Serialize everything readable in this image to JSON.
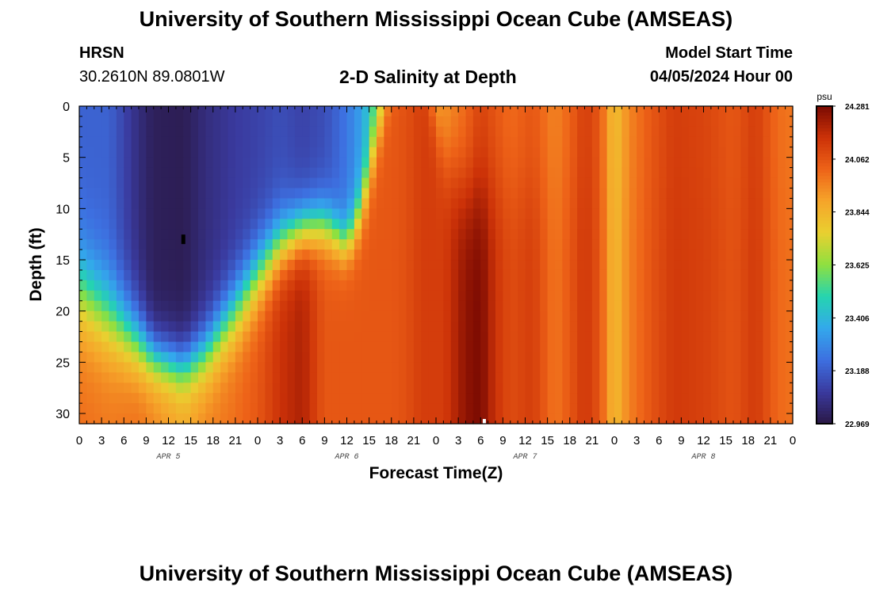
{
  "header": {
    "title": "University of Southern Mississippi Ocean Cube (AMSEAS)",
    "station": "HRSN",
    "coords": "30.2610N  89.0801W",
    "plot_title": "2-D Salinity at Depth",
    "model_label": "Model Start Time",
    "model_date": "04/05/2024 Hour 00"
  },
  "footer": {
    "title": "University of Southern Mississippi Ocean Cube (AMSEAS)"
  },
  "chart_data": {
    "type": "heatmap",
    "title": "2-D Salinity at Depth",
    "xlabel": "Forecast Time(Z)",
    "ylabel": "Depth (ft)",
    "x_ticks": [
      "0",
      "3",
      "6",
      "9",
      "12",
      "15",
      "18",
      "21",
      "0",
      "3",
      "6",
      "9",
      "12",
      "15",
      "18",
      "21",
      "0",
      "3",
      "6",
      "9",
      "12",
      "15",
      "18",
      "21",
      "0",
      "3",
      "6",
      "9",
      "12",
      "15",
      "18",
      "21",
      "0"
    ],
    "x_hours_range": [
      0,
      96
    ],
    "day_labels": [
      {
        "label": "APR 5",
        "hour": 12
      },
      {
        "label": "APR 6",
        "hour": 36
      },
      {
        "label": "APR 7",
        "hour": 60
      },
      {
        "label": "APR 8",
        "hour": 84
      }
    ],
    "y_ticks": [
      "0",
      "5",
      "10",
      "15",
      "20",
      "25",
      "30"
    ],
    "y_range": [
      0,
      31
    ],
    "colorbar": {
      "unit": "psu",
      "ticks": [
        "24.281",
        "24.062",
        "23.844",
        "23.625",
        "23.406",
        "23.188",
        "22.969"
      ],
      "min": 22.969,
      "max": 24.281,
      "colors": [
        "#2a1846",
        "#3a3a9e",
        "#3d6fe0",
        "#33a8ec",
        "#25d4b0",
        "#8ee040",
        "#e9d030",
        "#f6a52a",
        "#ee6318",
        "#cc3208",
        "#7a0a02"
      ]
    },
    "profiles": [
      {
        "hour": 0,
        "top": 23.2,
        "bottom": 24.0,
        "mid": 18,
        "width": 6
      },
      {
        "hour": 4,
        "top": 23.2,
        "bottom": 23.98,
        "mid": 20.5,
        "width": 5.5
      },
      {
        "hour": 8,
        "top": 23.05,
        "bottom": 24.0,
        "mid": 23,
        "width": 4.5
      },
      {
        "hour": 10,
        "top": 23.0,
        "bottom": 23.95,
        "mid": 24.5,
        "width": 3.5
      },
      {
        "hour": 14,
        "top": 22.99,
        "bottom": 23.88,
        "mid": 25.5,
        "width": 3.5
      },
      {
        "hour": 17,
        "top": 23.05,
        "bottom": 23.95,
        "mid": 24,
        "width": 4
      },
      {
        "hour": 21,
        "top": 23.1,
        "bottom": 24.0,
        "mid": 20,
        "width": 4.5
      },
      {
        "hour": 24,
        "top": 23.12,
        "bottom": 24.05,
        "mid": 16.5,
        "width": 4.5
      },
      {
        "hour": 27,
        "top": 23.15,
        "bottom": 24.15,
        "mid": 13.5,
        "width": 4
      },
      {
        "hour": 30,
        "top": 23.12,
        "bottom": 24.2,
        "mid": 12,
        "width": 3.5
      },
      {
        "hour": 33,
        "top": 23.15,
        "bottom": 24.05,
        "mid": 11.5,
        "width": 3.5
      },
      {
        "hour": 36,
        "top": 23.25,
        "bottom": 24.05,
        "mid": 13.5,
        "width": 3
      },
      {
        "hour": 38,
        "top": 23.35,
        "bottom": 24.05,
        "mid": 10,
        "width": 3.5
      },
      {
        "hour": 40,
        "top": 23.55,
        "bottom": 24.05,
        "mid": 3,
        "width": 4
      },
      {
        "hour": 42,
        "top": 23.72,
        "bottom": 24.05,
        "mid": -3,
        "width": 3
      },
      {
        "hour": 44,
        "top": 23.8,
        "bottom": 24.07,
        "mid": -6,
        "width": 3
      },
      {
        "hour": 46,
        "top": 23.8,
        "bottom": 24.12,
        "mid": -6,
        "width": 3
      },
      {
        "hour": 49,
        "top": 23.9,
        "bottom": 24.12,
        "mid": 5,
        "width": 5
      },
      {
        "hour": 52,
        "top": 24.0,
        "bottom": 24.25,
        "mid": 8,
        "width": 6
      },
      {
        "hour": 54,
        "top": 24.1,
        "bottom": 24.28,
        "mid": 8,
        "width": 6
      },
      {
        "hour": 56,
        "top": 24.05,
        "bottom": 24.15,
        "mid": 8,
        "width": 6
      },
      {
        "hour": 58,
        "top": 24.0,
        "bottom": 24.08,
        "mid": 8,
        "width": 6
      },
      {
        "hour": 61,
        "top": 24.05,
        "bottom": 24.12,
        "mid": 8,
        "width": 6
      },
      {
        "hour": 64,
        "top": 23.95,
        "bottom": 23.98,
        "mid": 8,
        "width": 6
      },
      {
        "hour": 66,
        "top": 24.02,
        "bottom": 24.05,
        "mid": 8,
        "width": 6
      },
      {
        "hour": 68,
        "top": 24.12,
        "bottom": 24.14,
        "mid": 8,
        "width": 6
      },
      {
        "hour": 70,
        "top": 24.05,
        "bottom": 24.06,
        "mid": 8,
        "width": 6
      },
      {
        "hour": 72,
        "top": 23.8,
        "bottom": 23.82,
        "mid": 8,
        "width": 6
      },
      {
        "hour": 74,
        "top": 23.95,
        "bottom": 23.96,
        "mid": 8,
        "width": 6
      },
      {
        "hour": 77,
        "top": 24.05,
        "bottom": 24.06,
        "mid": 8,
        "width": 6
      },
      {
        "hour": 80,
        "top": 24.12,
        "bottom": 24.13,
        "mid": 8,
        "width": 6
      },
      {
        "hour": 84,
        "top": 24.1,
        "bottom": 24.11,
        "mid": 8,
        "width": 6
      },
      {
        "hour": 88,
        "top": 24.05,
        "bottom": 24.06,
        "mid": 8,
        "width": 6
      },
      {
        "hour": 91,
        "top": 24.12,
        "bottom": 24.13,
        "mid": 8,
        "width": 6
      },
      {
        "hour": 94,
        "top": 24.0,
        "bottom": 24.01,
        "mid": 8,
        "width": 6
      },
      {
        "hour": 96,
        "top": 23.98,
        "bottom": 23.99,
        "mid": 8,
        "width": 6
      }
    ],
    "min_marker": {
      "hour": 14,
      "depth": 13
    },
    "max_marker": {
      "hour": 54.5,
      "depth": 31
    }
  }
}
